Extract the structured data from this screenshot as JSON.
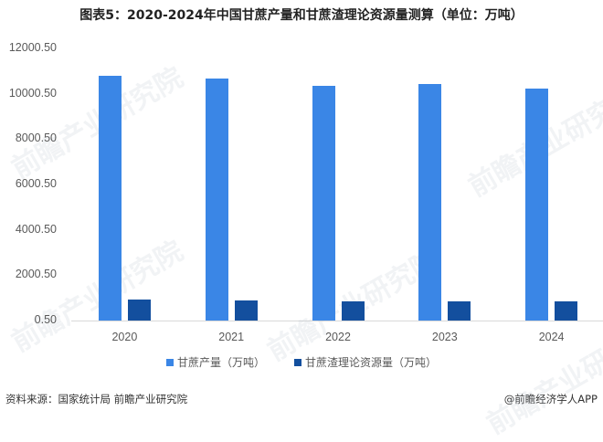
{
  "title": "图表5：2020-2024年中国甘蔗产量和甘蔗渣理论资源量测算（单位：万吨）",
  "chart_data": {
    "type": "bar",
    "title": "图表5：2020-2024年中国甘蔗产量和甘蔗渣理论资源量测算（单位：万吨）",
    "xlabel": "",
    "ylabel": "",
    "ylim": [
      0.5,
      12000.5
    ],
    "yticks": [
      "12000.50",
      "10000.50",
      "8000.50",
      "6000.50",
      "4000.50",
      "2000.50",
      "0.50"
    ],
    "categories": [
      "2020",
      "2021",
      "2022",
      "2023",
      "2024"
    ],
    "series": [
      {
        "name": "甘蔗产量（万吨）",
        "color": "#3a86e6",
        "values": [
          10812,
          10666,
          10338,
          10418,
          10223
        ]
      },
      {
        "name": "甘蔗渣理论资源量（万吨）",
        "color": "#134f9e",
        "values": [
          925,
          885,
          845,
          845,
          835
        ]
      }
    ],
    "grid": false,
    "legend_position": "bottom"
  },
  "footer": {
    "source": "资料来源：国家统计局 前瞻产业研究院",
    "credit": "@前瞻经济学人APP"
  },
  "watermark": "前瞻产业研究院"
}
